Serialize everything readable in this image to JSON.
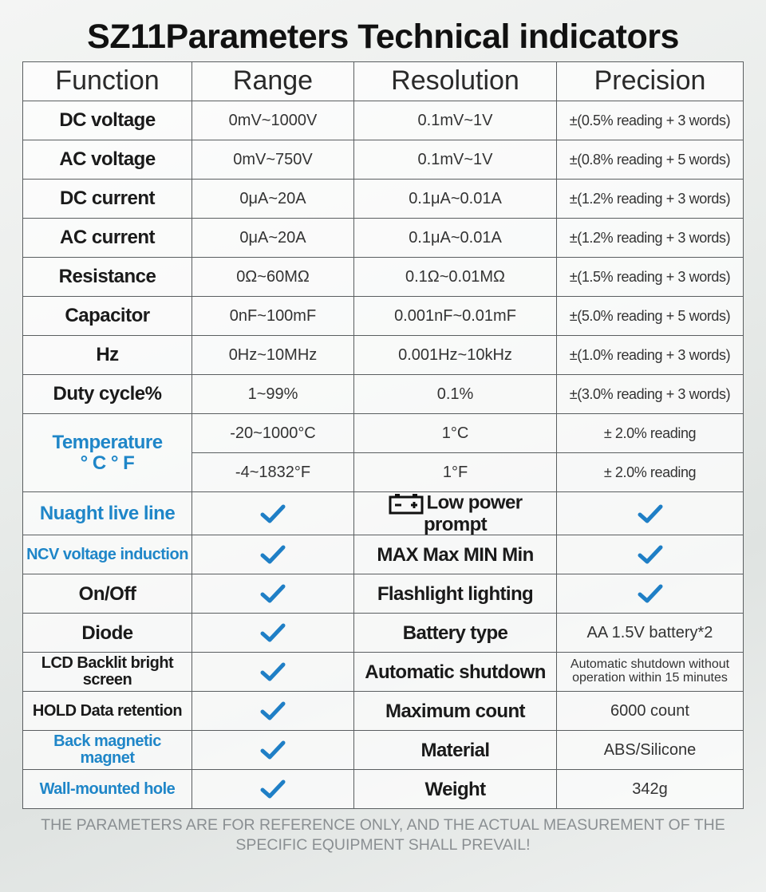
{
  "header": {
    "title": "SZ11Parameters Technical indicators"
  },
  "table": {
    "columns": [
      "Function",
      "Range",
      "Resolution",
      "Precision"
    ],
    "rows": [
      [
        "DC voltage",
        "0mV~1000V",
        "0.1mV~1V",
        "±(0.5% reading + 3 words)"
      ],
      [
        "AC voltage",
        "0mV~750V",
        "0.1mV~1V",
        "±(0.8% reading + 5 words)"
      ],
      [
        "DC current",
        "0μA~20A",
        "0.1μA~0.01A",
        "±(1.2% reading + 3 words)"
      ],
      [
        "AC current",
        "0μA~20A",
        "0.1μA~0.01A",
        "±(1.2% reading + 3 words)"
      ],
      [
        "Resistance",
        "0Ω~60MΩ",
        "0.1Ω~0.01MΩ",
        "±(1.5% reading + 3 words)"
      ],
      [
        "Capacitor",
        "0nF~100mF",
        "0.001nF~0.01mF",
        "±(5.0% reading + 5 words)"
      ],
      [
        "Hz",
        "0Hz~10MHz",
        "0.001Hz~10kHz",
        "±(1.0% reading + 3 words)"
      ],
      [
        "Duty cycle%",
        "1~99%",
        "0.1%",
        "±(3.0% reading + 3 words)"
      ]
    ],
    "temperature": {
      "label": [
        "Temperature",
        "° C ° F"
      ],
      "color": "#1f86c8",
      "rows": [
        [
          "-20~1000°C",
          "1°C",
          "± 2.0% reading"
        ],
        [
          "-4~1832°F",
          "1°F",
          "± 2.0% reading"
        ]
      ]
    },
    "features": [
      {
        "feature": "Nuaght live line",
        "color": "#1f86c8",
        "item": "Low power prompt"
      },
      {
        "feature": "NCV voltage induction",
        "color": "#1f86c8",
        "item": "MAX Max MIN Min"
      },
      {
        "feature": "On/Off",
        "item": "Flashlight lighting"
      },
      {
        "feature": "Diode",
        "item": "Battery type",
        "value": "AA 1.5V battery*2"
      },
      {
        "feature": "LCD Backlit bright screen",
        "item": "Automatic shutdown",
        "value": "Automatic shutdown without operation within 15 minutes"
      },
      {
        "feature": "HOLD Data retention",
        "item": "Maximum count",
        "value": "6000 count"
      },
      {
        "feature": "Back magnetic magnet",
        "color": "#1f86c8",
        "item": "Material",
        "value": "ABS/Silicone"
      },
      {
        "feature": "Wall-mounted hole",
        "color": "#1f86c8",
        "item": "Weight",
        "value": "342g"
      }
    ]
  },
  "footer": {
    "note": "THE PARAMETERS ARE FOR REFERENCE ONLY, AND THE ACTUAL MEASUREMENT OF THE SPECIFIC EQUIPMENT SHALL PREVAIL!"
  }
}
